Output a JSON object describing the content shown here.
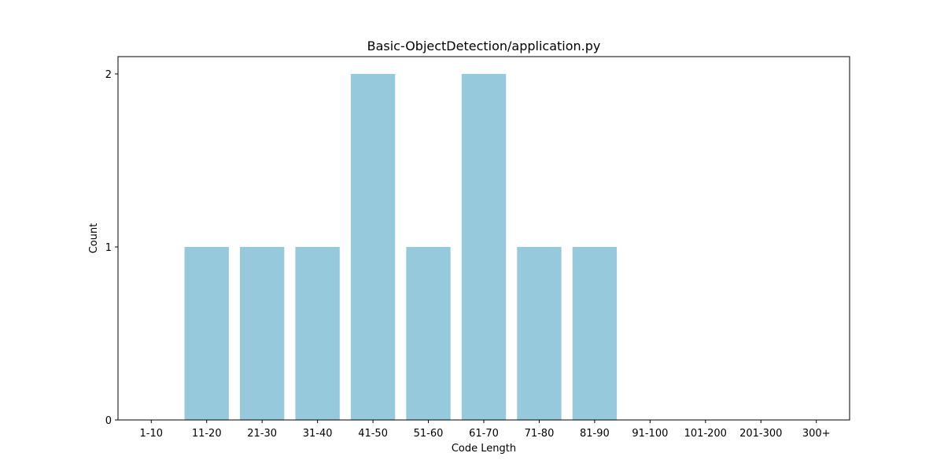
{
  "chart_data": {
    "type": "bar",
    "title": "Basic-ObjectDetection/application.py",
    "xlabel": "Code Length",
    "ylabel": "Count",
    "categories": [
      "1-10",
      "11-20",
      "21-30",
      "31-40",
      "41-50",
      "51-60",
      "61-70",
      "71-80",
      "81-90",
      "91-100",
      "101-200",
      "201-300",
      "300+"
    ],
    "values": [
      0,
      1,
      1,
      1,
      2,
      1,
      2,
      1,
      1,
      0,
      0,
      0,
      0
    ],
    "ylim": [
      0,
      2.1
    ],
    "yticks": [
      "0",
      "1",
      "2"
    ],
    "grid": false,
    "bar_color": "#96c9dc"
  }
}
